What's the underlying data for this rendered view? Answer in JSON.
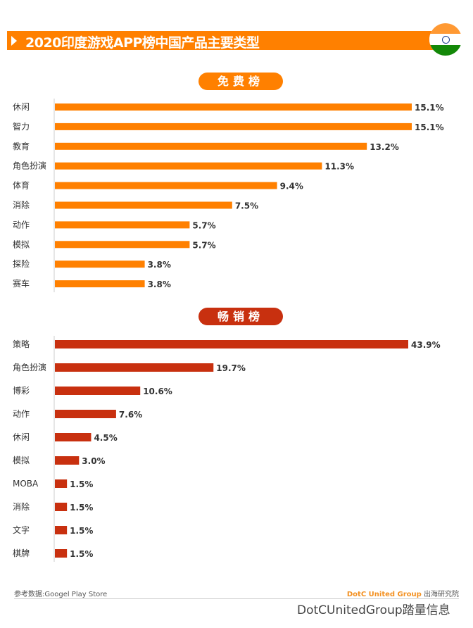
{
  "title": "2020印度游戏APP榜中国产品主要类型",
  "colors": {
    "accent": "#ff8000",
    "free": "#ff8000",
    "paid": "#c8300f"
  },
  "chart_data": [
    {
      "type": "bar",
      "orientation": "horizontal",
      "title": "免费榜",
      "unit": "%",
      "categories": [
        "休闲",
        "智力",
        "教育",
        "角色扮演",
        "体育",
        "消除",
        "动作",
        "模拟",
        "探险",
        "赛车"
      ],
      "values": [
        15.1,
        15.1,
        13.2,
        11.3,
        9.4,
        7.5,
        5.7,
        5.7,
        3.8,
        3.8
      ],
      "labels": [
        "15.1%",
        "15.1%",
        "13.2%",
        "11.3%",
        "9.4%",
        "7.5%",
        "5.7%",
        "5.7%",
        "3.8%",
        "3.8%"
      ]
    },
    {
      "type": "bar",
      "orientation": "horizontal",
      "title": "畅销榜",
      "unit": "%",
      "categories": [
        "策略",
        "角色扮演",
        "博彩",
        "动作",
        "休闲",
        "模拟",
        "MOBA",
        "消除",
        "文字",
        "棋牌"
      ],
      "values": [
        43.9,
        19.7,
        10.6,
        7.6,
        4.5,
        3.0,
        1.5,
        1.5,
        1.5,
        1.5
      ],
      "labels": [
        "43.9%",
        "19.7%",
        "10.6%",
        "7.6%",
        "4.5%",
        "3.0%",
        "1.5%",
        "1.5%",
        "1.5%",
        "1.5%"
      ]
    }
  ],
  "footer": {
    "source": "参考数据:Googel Play Store",
    "brand": "DotC United Group",
    "brand_suffix": " 出海研究院"
  },
  "watermark": "DotCUnitedGroup踏量信息"
}
